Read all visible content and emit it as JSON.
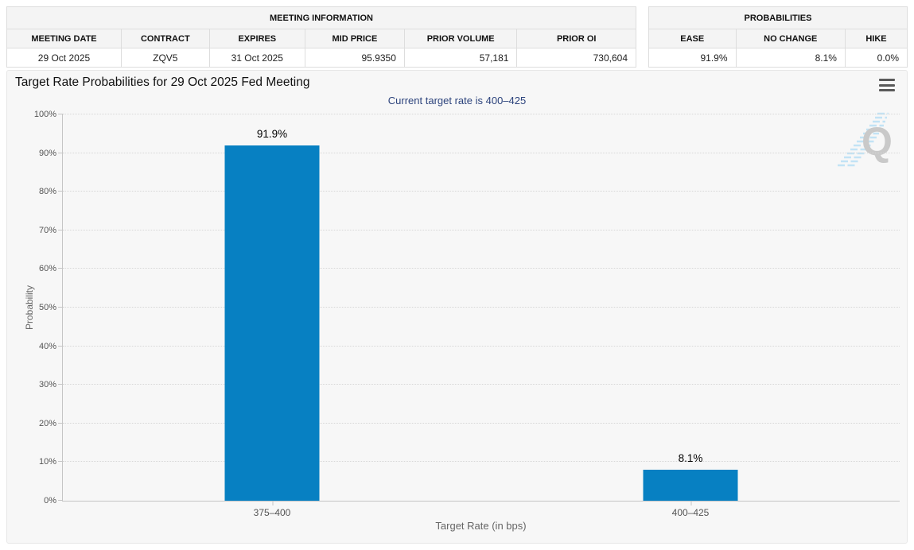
{
  "meeting_information": {
    "title": "MEETING INFORMATION",
    "columns": [
      "MEETING DATE",
      "CONTRACT",
      "EXPIRES",
      "MID PRICE",
      "PRIOR VOLUME",
      "PRIOR OI"
    ],
    "values": [
      "29 Oct 2025",
      "ZQV5",
      "31 Oct 2025",
      "95.9350",
      "57,181",
      "730,604"
    ]
  },
  "probabilities_summary": {
    "title": "PROBABILITIES",
    "columns": [
      "EASE",
      "NO CHANGE",
      "HIKE"
    ],
    "values": [
      "91.9%",
      "8.1%",
      "0.0%"
    ]
  },
  "chart": {
    "title": "Target Rate Probabilities for 29 Oct 2025 Fed Meeting",
    "subtitle": "Current target rate is 400–425",
    "menu_icon": "hamburger-icon",
    "watermark_letter": "Q",
    "colors": {
      "bar": "#0780c2",
      "subtitle_text": "#2c437c",
      "gridline": "#d7d7d7",
      "axis_line": "#c5c5c5",
      "watermark_letter": "#c9c9c9",
      "watermark_stripes": "#c2e3f5"
    }
  },
  "chart_data": {
    "type": "bar",
    "title": "Target Rate Probabilities for 29 Oct 2025 Fed Meeting",
    "subtitle": "Current target rate is 400–425",
    "categories": [
      "375–400",
      "400–425"
    ],
    "values": [
      91.9,
      8.1
    ],
    "value_labels": [
      "91.9%",
      "8.1%"
    ],
    "xlabel": "Target Rate (in bps)",
    "ylabel": "Probability",
    "ylim": [
      0,
      100
    ],
    "ytick_step": 10,
    "ytick_labels": [
      "0%",
      "10%",
      "20%",
      "30%",
      "40%",
      "50%",
      "60%",
      "70%",
      "80%",
      "90%",
      "100%"
    ],
    "grid": "dotted-horizontal",
    "legend": "none",
    "bar_color": "#0780c2"
  }
}
